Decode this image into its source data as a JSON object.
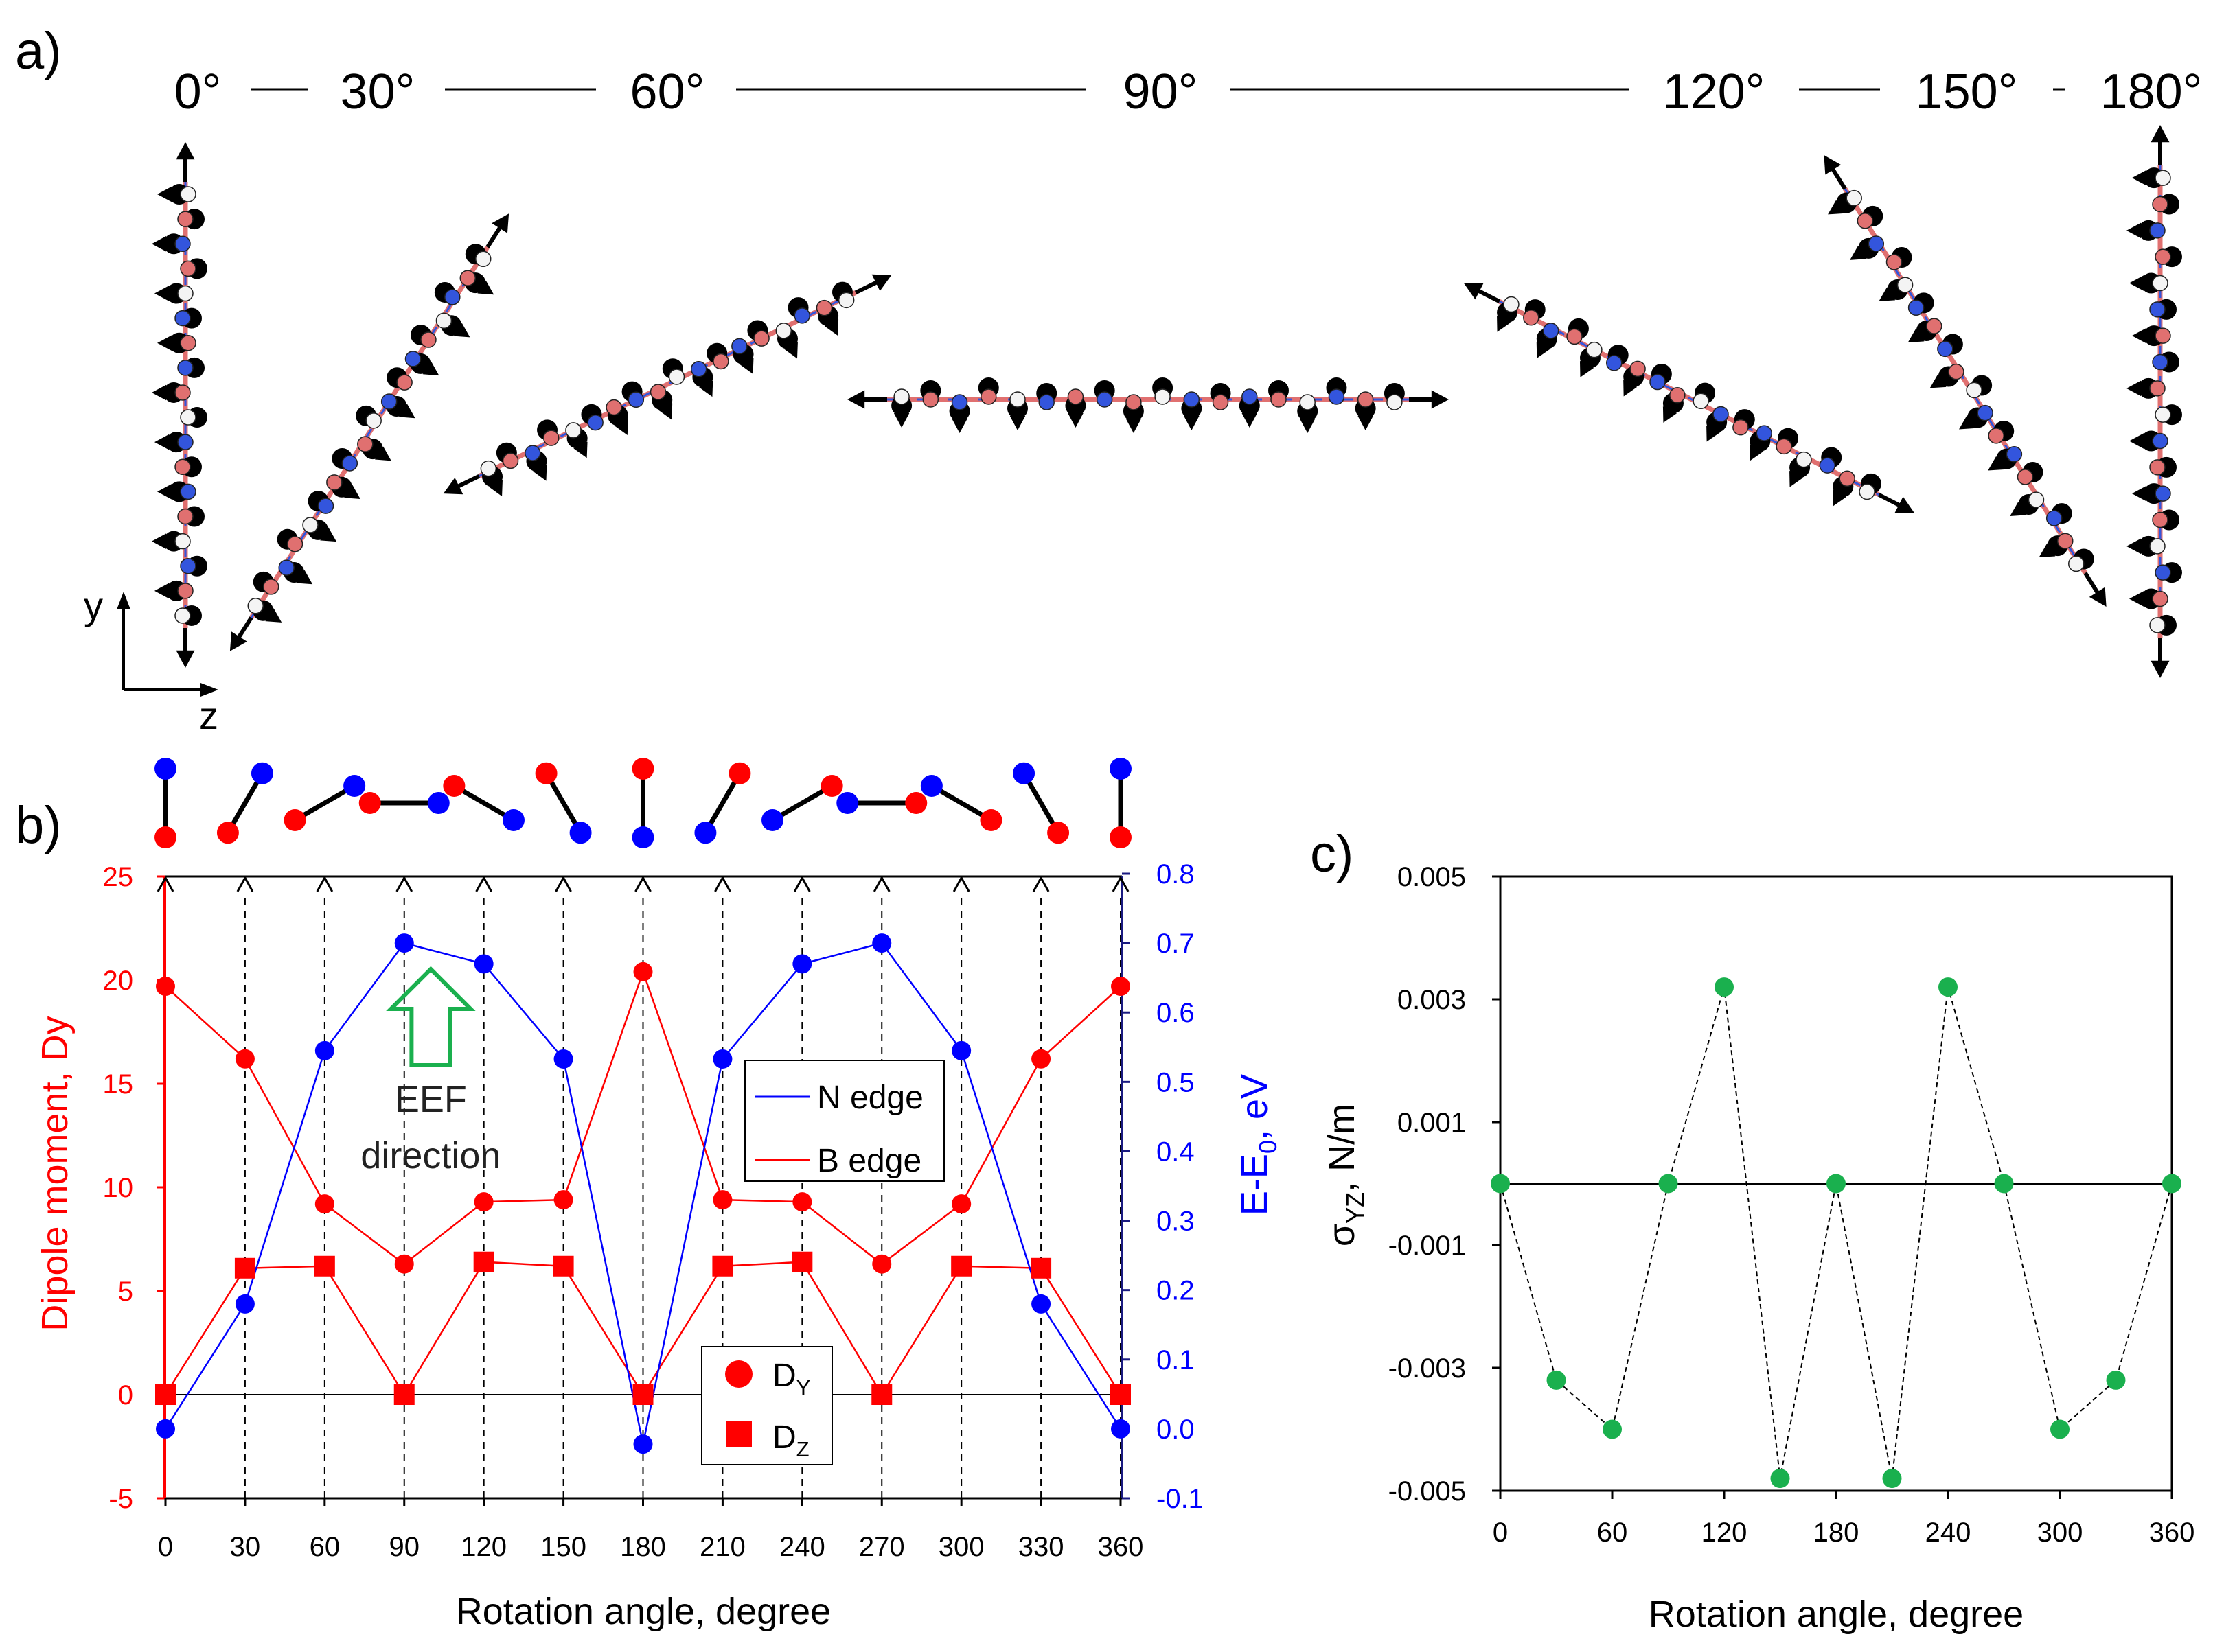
{
  "panel_labels": {
    "a": "a)",
    "b": "b)",
    "c": "c)"
  },
  "panel_a": {
    "angle_labels": [
      "0°",
      "30°",
      "60°",
      "90°",
      "120°",
      "150°",
      "180°"
    ],
    "axis_y": "y",
    "axis_z": "z"
  },
  "colors": {
    "red": "#ff0000",
    "blue": "#0000ff",
    "navy": "#1a1a80",
    "green": "#1ab04e",
    "atom_red": "#e07070",
    "atom_blue": "#3355dd",
    "atom_white": "#f4f4f4"
  },
  "chart_data": [
    {
      "id": "b",
      "type": "line",
      "title": "",
      "xlabel": "Rotation angle, degree",
      "ylabel_left": "Dipole moment, Dy",
      "ylabel_right_main": "E-E",
      "ylabel_right_sub": "0",
      "ylabel_right_tail": ", eV",
      "x": [
        0,
        30,
        60,
        90,
        120,
        150,
        180,
        210,
        240,
        270,
        300,
        330,
        360
      ],
      "xticks": [
        "0",
        "30",
        "60",
        "90",
        "120",
        "150",
        "180",
        "210",
        "240",
        "270",
        "300",
        "330",
        "360"
      ],
      "xlim": [
        0,
        360
      ],
      "ylim_left": [
        -5,
        25
      ],
      "yticks_left": [
        "-5",
        "0",
        "5",
        "10",
        "15",
        "20",
        "25"
      ],
      "ylim_right": [
        -0.1,
        0.8
      ],
      "yticks_right": [
        "-0.1",
        "0.0",
        "0.1",
        "0.2",
        "0.3",
        "0.4",
        "0.5",
        "0.6",
        "0.7",
        "0.8"
      ],
      "series": [
        {
          "name": "DY",
          "axis": "left",
          "marker": "circle",
          "color": "#ff0000",
          "values": [
            19.7,
            16.2,
            9.2,
            6.3,
            9.3,
            9.4,
            20.4,
            9.4,
            9.3,
            6.3,
            9.2,
            16.2,
            19.7
          ]
        },
        {
          "name": "DZ",
          "axis": "left",
          "marker": "square",
          "color": "#ff0000",
          "values": [
            0.0,
            6.1,
            6.2,
            0.0,
            6.4,
            6.2,
            0.0,
            6.2,
            6.4,
            0.0,
            6.2,
            6.1,
            0.0
          ]
        },
        {
          "name": "E-E0",
          "axis": "right",
          "marker": "circle",
          "color": "#0000ff",
          "values": [
            0.0,
            0.18,
            0.545,
            0.7,
            0.67,
            0.533,
            -0.022,
            0.533,
            0.67,
            0.7,
            0.545,
            0.18,
            0.0
          ]
        }
      ],
      "legend_lines": [
        {
          "label": "N edge",
          "color": "#0000ff"
        },
        {
          "label": "B edge",
          "color": "#ff0000"
        }
      ],
      "legend_markers": [
        {
          "label_main": "D",
          "label_sub": "Y",
          "marker": "circle"
        },
        {
          "label_main": "D",
          "label_sub": "Z",
          "marker": "square"
        }
      ],
      "annotation": {
        "line1": "EEF",
        "line2": "direction",
        "color": "#1ab04e",
        "x": 100
      }
    },
    {
      "id": "c",
      "type": "scatter",
      "title": "",
      "xlabel": "Rotation angle, degree",
      "ylabel_main": "σ",
      "ylabel_sub": "YZ",
      "ylabel_tail": ", N/m",
      "x": [
        0,
        30,
        60,
        90,
        120,
        150,
        180,
        210,
        240,
        270,
        300,
        330,
        360
      ],
      "values": [
        0.0,
        -0.0032,
        -0.004,
        0.0,
        0.0032,
        -0.0048,
        0.0,
        -0.0048,
        0.0032,
        0.0,
        -0.004,
        -0.0032,
        0.0
      ],
      "xticks": [
        "0",
        "60",
        "120",
        "180",
        "240",
        "300",
        "360"
      ],
      "xlim": [
        0,
        360
      ],
      "ylim": [
        -0.005,
        0.005
      ],
      "yticks": [
        "-0.005",
        "-0.003",
        "-0.001",
        "0.001",
        "0.003",
        "0.005"
      ],
      "color": "#1ab04e"
    }
  ]
}
